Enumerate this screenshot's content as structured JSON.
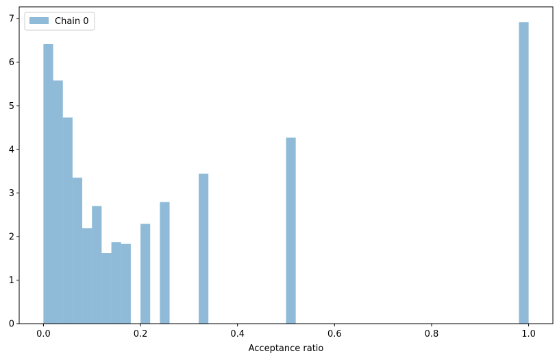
{
  "chart_data": {
    "type": "bar",
    "subtype": "histogram",
    "title": "",
    "xlabel": "Acceptance ratio",
    "ylabel": "",
    "xlim": [
      -0.05,
      1.05
    ],
    "ylim": [
      0,
      7.27
    ],
    "x_ticks": [
      0.0,
      0.2,
      0.4,
      0.6,
      0.8,
      1.0
    ],
    "x_tick_labels": [
      "0.0",
      "0.2",
      "0.4",
      "0.6",
      "0.8",
      "1.0"
    ],
    "y_ticks": [
      0,
      1,
      2,
      3,
      4,
      5,
      6,
      7
    ],
    "y_tick_labels": [
      "0",
      "1",
      "2",
      "3",
      "4",
      "5",
      "6",
      "7"
    ],
    "grid": false,
    "legend": {
      "position": "top-left",
      "entries": [
        "Chain 0"
      ]
    },
    "bin_width": 0.02,
    "series": [
      {
        "name": "Chain 0",
        "color": "#1f77b4",
        "alpha": 0.5,
        "bins": [
          {
            "x0": 0.0,
            "x1": 0.02,
            "value": 6.42
          },
          {
            "x0": 0.02,
            "x1": 0.04,
            "value": 5.58
          },
          {
            "x0": 0.04,
            "x1": 0.06,
            "value": 4.73
          },
          {
            "x0": 0.06,
            "x1": 0.08,
            "value": 3.35
          },
          {
            "x0": 0.08,
            "x1": 0.1,
            "value": 2.19
          },
          {
            "x0": 0.1,
            "x1": 0.12,
            "value": 2.7
          },
          {
            "x0": 0.12,
            "x1": 0.14,
            "value": 1.62
          },
          {
            "x0": 0.14,
            "x1": 0.16,
            "value": 1.87
          },
          {
            "x0": 0.16,
            "x1": 0.18,
            "value": 1.83
          },
          {
            "x0": 0.2,
            "x1": 0.22,
            "value": 2.29
          },
          {
            "x0": 0.24,
            "x1": 0.26,
            "value": 2.79
          },
          {
            "x0": 0.32,
            "x1": 0.34,
            "value": 3.44
          },
          {
            "x0": 0.5,
            "x1": 0.52,
            "value": 4.27
          },
          {
            "x0": 0.98,
            "x1": 1.0,
            "value": 6.92
          }
        ]
      }
    ]
  }
}
